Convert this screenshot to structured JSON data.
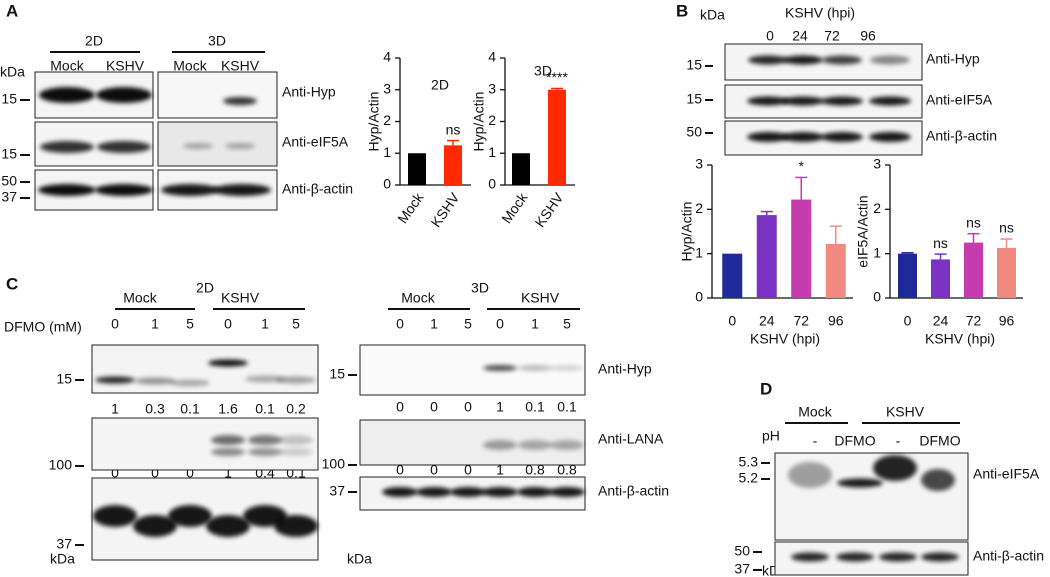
{
  "panels": {
    "a": "A",
    "b": "B",
    "c": "C",
    "d": "D"
  },
  "panel_a": {
    "kda": "kDa",
    "groups": [
      "2D",
      "3D"
    ],
    "lanes": [
      "Mock",
      "KSHV",
      "Mock",
      "KSHV"
    ],
    "markers": [
      "15",
      "15",
      "50",
      "37"
    ],
    "antibodies": [
      "Anti-Hyp",
      "Anti-eIF5A",
      "Anti-β-actin"
    ]
  },
  "panel_b": {
    "kda": "kDa",
    "header": "KSHV (hpi)",
    "lanes": [
      "0",
      "24",
      "72",
      "96"
    ],
    "markers": [
      "15",
      "15",
      "50"
    ],
    "antibodies": [
      "Anti-Hyp",
      "Anti-eIF5A",
      "Anti-β-actin"
    ]
  },
  "panel_c": {
    "dfmo": "DFMO (mM)",
    "antibodies": [
      "Anti-Hyp",
      "Anti-LANA",
      "Anti-β-actin"
    ],
    "left": {
      "title": "2D",
      "groups": [
        "Mock",
        "KSHV"
      ],
      "doses": [
        "0",
        "1",
        "5",
        "0",
        "1",
        "5"
      ],
      "hyp_quant": [
        "1",
        "0.3",
        "0.1",
        "1.6",
        "0.1",
        "0.2"
      ],
      "lana_quant": [
        "0",
        "0",
        "0",
        "1",
        "0.4",
        "0.1"
      ],
      "markers": [
        "15",
        "100",
        "37"
      ],
      "kda": "kDa"
    },
    "right": {
      "title": "3D",
      "groups": [
        "Mock",
        "KSHV"
      ],
      "doses": [
        "0",
        "1",
        "5",
        "0",
        "1",
        "5"
      ],
      "hyp_quant": [
        "0",
        "0",
        "0",
        "1",
        "0.1",
        "0.1"
      ],
      "lana_quant": [
        "0",
        "0",
        "0",
        "1",
        "0.8",
        "0.8"
      ],
      "markers": [
        "15",
        "100",
        "37"
      ],
      "kda": "kDa"
    }
  },
  "panel_d": {
    "groups": [
      "Mock",
      "KSHV"
    ],
    "treatments": [
      "-",
      "DFMO",
      "-",
      "DFMO"
    ],
    "ph": "pH",
    "ph_markers": [
      "5.3",
      "5.2"
    ],
    "markers": [
      "50",
      "37"
    ],
    "kda": "kDa",
    "antibodies": [
      "Anti-eIF5A",
      "Anti-β-actin"
    ]
  },
  "chart_data": [
    {
      "type": "bar",
      "title": "2D",
      "ylabel": "Hyp/Actin",
      "categories": [
        "Mock",
        "KSHV"
      ],
      "values": [
        1,
        1.25
      ],
      "errors": [
        null,
        0.15
      ],
      "annotations": [
        null,
        "ns"
      ],
      "colors": [
        "#000000",
        "#ff2a00"
      ],
      "ylim": [
        0,
        4
      ],
      "yticks": [
        0,
        1,
        2,
        3,
        4
      ]
    },
    {
      "type": "bar",
      "title": "3D",
      "ylabel": "Hyp/Actin",
      "categories": [
        "Mock",
        "KSHV"
      ],
      "values": [
        1,
        3
      ],
      "errors": [
        null,
        0.04
      ],
      "annotations": [
        null,
        "****"
      ],
      "colors": [
        "#000000",
        "#ff2a00"
      ],
      "ylim": [
        0,
        4
      ],
      "yticks": [
        0,
        1,
        2,
        3,
        4
      ]
    },
    {
      "type": "bar",
      "ylabel": "Hyp/Actin",
      "xlabel": "KSHV (hpi)",
      "categories": [
        "0",
        "24",
        "72",
        "96"
      ],
      "values": [
        1,
        1.87,
        2.22,
        1.22
      ],
      "errors": [
        null,
        0.08,
        0.5,
        0.4
      ],
      "annotations": [
        null,
        null,
        "*",
        null
      ],
      "colors": [
        "#1f2a99",
        "#7b33c4",
        "#c43cae",
        "#f08a80"
      ],
      "ylim": [
        0,
        3
      ],
      "yticks": [
        0,
        1,
        2,
        3
      ]
    },
    {
      "type": "bar",
      "ylabel": "eIF5A/Actin",
      "xlabel": "KSHV (hpi)",
      "categories": [
        "0",
        "24",
        "72",
        "96"
      ],
      "values": [
        1,
        0.87,
        1.25,
        1.13
      ],
      "errors": [
        0.02,
        0.12,
        0.2,
        0.2
      ],
      "annotations": [
        null,
        "ns",
        "ns",
        "ns"
      ],
      "colors": [
        "#1f2a99",
        "#7b33c4",
        "#c43cae",
        "#f08a80"
      ],
      "ylim": [
        0,
        3
      ],
      "yticks": [
        0,
        1,
        2,
        3
      ]
    }
  ]
}
